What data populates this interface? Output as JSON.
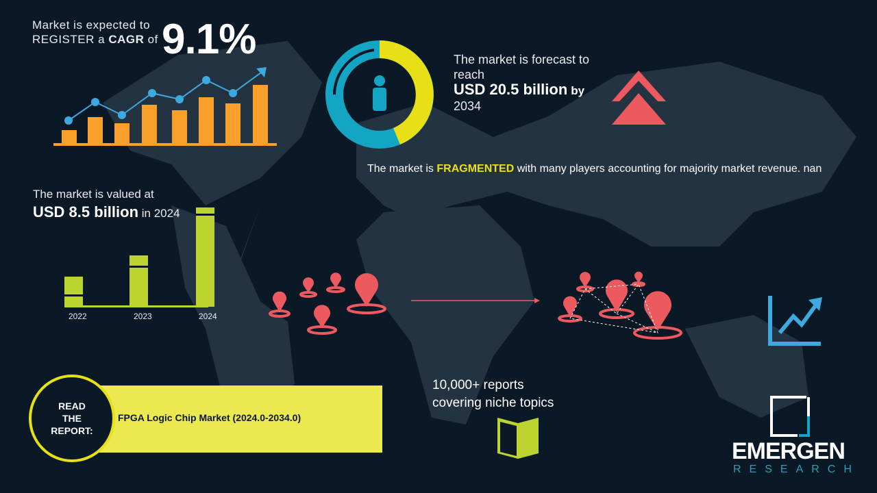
{
  "cagr": {
    "line1": "Market is expected to",
    "line2_prefix": "REGISTER a ",
    "line2_bold": "CAGR",
    "line2_suffix": " of",
    "value": "9.1%"
  },
  "forecast": {
    "line1": "The market is forecast to reach",
    "value": "USD 20.5 billion",
    "by": "by",
    "year": "2034"
  },
  "fragmented": {
    "prefix": "The market is ",
    "highlight": "FRAGMENTED",
    "suffix": " with many players accounting for majority market revenue. nan"
  },
  "valued": {
    "line1": "The market is valued at",
    "value": "USD 8.5 billion",
    "suffix": " in 2024"
  },
  "bar_years": [
    "2022",
    "2023",
    "2024"
  ],
  "report": {
    "circle": [
      "READ",
      "THE",
      "REPORT:"
    ],
    "title": "FPGA Logic Chip Market (2024.0-2034.0)"
  },
  "reports_count": {
    "line1": "10,000+ reports",
    "line2": "covering niche topics"
  },
  "logo": {
    "name": "EMERGEN",
    "sub": "RESEARCH"
  },
  "colors": {
    "background": "#0b1826",
    "map": "#243341",
    "orange": "#f8a02a",
    "blue": "#3ea8e0",
    "lime": "#bdd330",
    "yellow": "#e8e016",
    "pin": "#ec5a5f",
    "teal": "#14a5c4"
  }
}
